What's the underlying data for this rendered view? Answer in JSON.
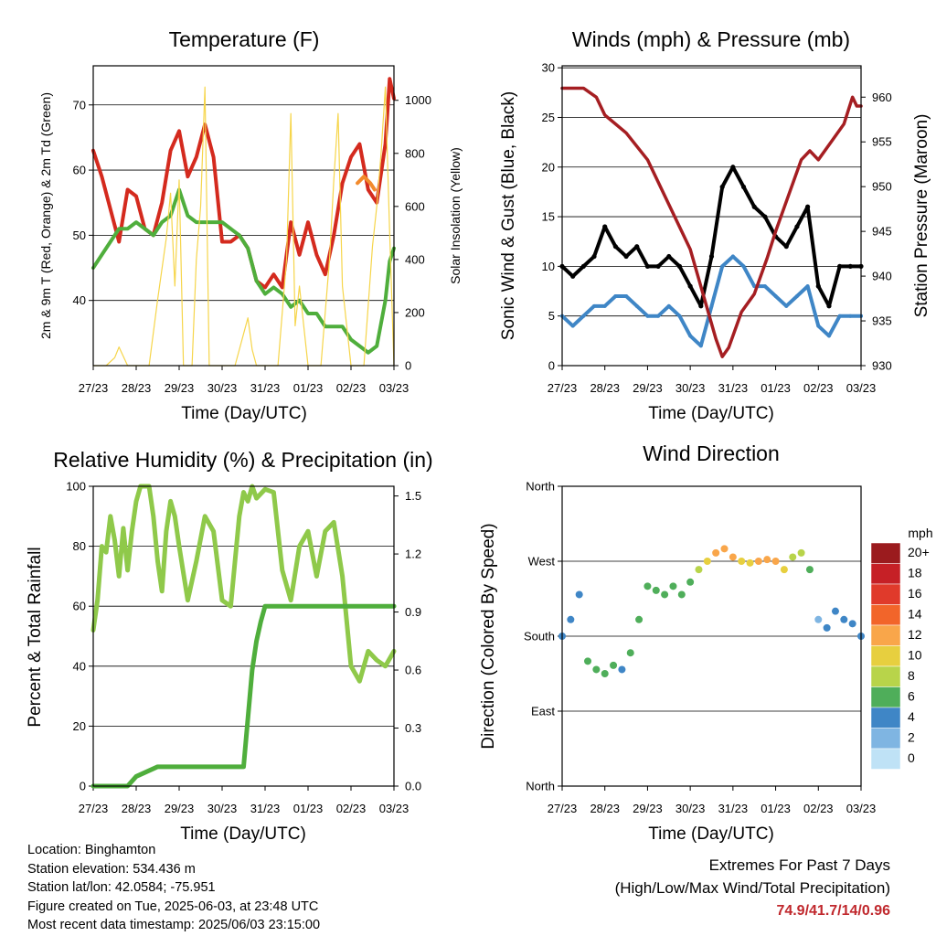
{
  "panels": {
    "temperature": {
      "title": "Temperature (F)",
      "xlabel": "Time (Day/UTC)",
      "ylabel_left": "2m & 9m T (Red, Orange) & 2m Td (Green)",
      "ylabel_right": "Solar Insolation (Yellow)"
    },
    "winds": {
      "title": "Winds (mph) & Pressure (mb)",
      "xlabel": "Time (Day/UTC)",
      "ylabel_left": "Sonic Wind & Gust (Blue, Black)",
      "ylabel_right": "Station Pressure (Maroon)"
    },
    "humidity": {
      "title": "Relative Humidity (%) & Precipitation (in)",
      "xlabel": "Time (Day/UTC)",
      "ylabel_left": "Percent & Total Rainfall"
    },
    "direction": {
      "title": "Wind Direction",
      "xlabel": "Time (Day/UTC)",
      "ylabel_left": "Direction (Colored By Speed)"
    }
  },
  "colorbar": {
    "title": "mph",
    "labels": [
      "20+",
      "18",
      "16",
      "14",
      "12",
      "10",
      "8",
      "6",
      "4",
      "2",
      "0"
    ],
    "colors": [
      "#9b1b1e",
      "#c62026",
      "#e03a2b",
      "#f2652a",
      "#f9a64a",
      "#e7cf3f",
      "#b8d44a",
      "#4fae5a",
      "#3f86c6",
      "#7fb5e2",
      "#bfe2f6"
    ]
  },
  "footer": {
    "location": "Location: Binghamton",
    "elevation": "Station elevation: 534.436 m",
    "latlon": "Station lat/lon: 42.0584; -75.951",
    "created": "Figure created on Tue, 2025-06-03, at 23:48 UTC",
    "recent": "Most recent data timestamp: 2025/06/03 23:15:00",
    "extremes_title": "Extremes For Past 7 Days",
    "extremes_sub": "(High/Low/Max Wind/Total Precipitation)",
    "extremes_values": "74.9/41.7/14/0.96"
  },
  "chart_data": [
    {
      "type": "line",
      "title": "Temperature (F)",
      "xlabel": "Time (Day/UTC)",
      "ylabel": "2m & 9m T (Red, Orange) & 2m Td (Green)",
      "ylabel_right": "Solar Insolation (Yellow)",
      "x_ticks": [
        "27/23",
        "28/23",
        "29/23",
        "30/23",
        "31/23",
        "01/23",
        "02/23",
        "03/23"
      ],
      "xlim": [
        0,
        7
      ],
      "ylim": [
        30,
        76
      ],
      "yticks": [
        40,
        50,
        60,
        70
      ],
      "ylim_right": [
        0,
        1130
      ],
      "yticks_right": [
        0,
        200,
        400,
        600,
        800,
        1000
      ],
      "grid": true,
      "series": [
        {
          "name": "2m T",
          "color": "#d42a1e",
          "axis": "left",
          "x": [
            0,
            0.2,
            0.4,
            0.6,
            0.8,
            1.0,
            1.2,
            1.4,
            1.6,
            1.8,
            2.0,
            2.2,
            2.4,
            2.6,
            2.8,
            3.0,
            3.2,
            3.4,
            3.6,
            3.8,
            4.0,
            4.2,
            4.4,
            4.6,
            4.8,
            5.0,
            5.2,
            5.4,
            5.6,
            5.8,
            6.0,
            6.2,
            6.4,
            6.6,
            6.8,
            6.9,
            7.0
          ],
          "y": [
            63,
            59,
            54,
            49,
            57,
            56,
            51,
            50,
            55,
            63,
            66,
            59,
            62,
            67,
            62,
            49,
            49,
            50,
            48,
            43,
            42,
            44,
            42,
            52,
            47,
            52,
            47,
            44,
            50,
            58,
            62,
            64,
            57,
            55,
            64,
            74,
            71
          ]
        },
        {
          "name": "9m T",
          "color": "#f28a2c",
          "axis": "left",
          "x": [
            6.15,
            6.3,
            6.45,
            6.55
          ],
          "y": [
            58,
            59,
            58,
            57
          ]
        },
        {
          "name": "2m Td",
          "color": "#4fae3c",
          "axis": "left",
          "x": [
            0,
            0.2,
            0.4,
            0.6,
            0.8,
            1.0,
            1.2,
            1.4,
            1.6,
            1.8,
            2.0,
            2.2,
            2.4,
            2.6,
            2.8,
            3.0,
            3.2,
            3.4,
            3.6,
            3.8,
            4.0,
            4.2,
            4.4,
            4.6,
            4.8,
            5.0,
            5.2,
            5.4,
            5.6,
            5.8,
            6.0,
            6.2,
            6.4,
            6.6,
            6.8,
            6.9,
            7.0
          ],
          "y": [
            45,
            47,
            49,
            51,
            51,
            52,
            51,
            50,
            52,
            53,
            57,
            53,
            52,
            52,
            52,
            52,
            51,
            50,
            48,
            43,
            41,
            42,
            41,
            39,
            40,
            38,
            38,
            36,
            36,
            36,
            34,
            33,
            32,
            33,
            40,
            46,
            48
          ]
        },
        {
          "name": "Solar",
          "color": "#f6d54a",
          "axis": "right",
          "x": [
            0,
            0.3,
            0.5,
            0.6,
            0.8,
            1.0,
            1.3,
            1.5,
            1.7,
            1.8,
            1.9,
            2.0,
            2.1,
            2.3,
            2.4,
            2.5,
            2.6,
            2.7,
            2.8,
            2.9,
            3.1,
            3.3,
            3.5,
            3.6,
            3.7,
            3.8,
            3.9,
            4.3,
            4.5,
            4.6,
            4.7,
            4.8,
            5.0,
            5.3,
            5.5,
            5.6,
            5.7,
            5.8,
            6.0,
            6.3,
            6.5,
            6.6,
            6.7,
            6.8,
            6.9,
            7.0
          ],
          "y": [
            0,
            0,
            30,
            70,
            0,
            0,
            0,
            250,
            480,
            650,
            300,
            700,
            0,
            0,
            400,
            600,
            1050,
            0,
            0,
            0,
            0,
            0,
            120,
            180,
            60,
            0,
            0,
            0,
            400,
            950,
            150,
            300,
            0,
            0,
            400,
            700,
            950,
            300,
            0,
            0,
            450,
            600,
            800,
            1050,
            500,
            0
          ]
        }
      ]
    },
    {
      "type": "scatter",
      "title": "Winds (mph) & Pressure (mb)",
      "xlabel": "Time (Day/UTC)",
      "ylabel": "Sonic Wind & Gust (Blue, Black)",
      "ylabel_right": "Station Pressure (Maroon)",
      "x_ticks": [
        "27/23",
        "28/23",
        "29/23",
        "30/23",
        "31/23",
        "01/23",
        "02/23",
        "03/23"
      ],
      "xlim": [
        0,
        7
      ],
      "ylim": [
        0,
        30.2
      ],
      "yticks": [
        0,
        5,
        10,
        15,
        20,
        25,
        30
      ],
      "ylim_right": [
        930,
        963.5
      ],
      "yticks_right": [
        930,
        935,
        940,
        945,
        950,
        955,
        960
      ],
      "grid": true,
      "series": [
        {
          "name": "Sonic Wind",
          "color": "#3f86c6",
          "axis": "left",
          "x": [
            0,
            0.25,
            0.5,
            0.75,
            1.0,
            1.25,
            1.5,
            1.75,
            2.0,
            2.25,
            2.5,
            2.75,
            3.0,
            3.25,
            3.5,
            3.75,
            4.0,
            4.25,
            4.5,
            4.75,
            5.0,
            5.25,
            5.5,
            5.75,
            6.0,
            6.25,
            6.5,
            6.75,
            7.0
          ],
          "y": [
            5,
            4,
            5,
            6,
            6,
            7,
            7,
            6,
            5,
            5,
            6,
            5,
            3,
            2,
            6,
            10,
            11,
            10,
            8,
            8,
            7,
            6,
            7,
            8,
            4,
            3,
            5,
            5,
            5
          ]
        },
        {
          "name": "Gust",
          "color": "#000000",
          "axis": "left",
          "x": [
            0,
            0.25,
            0.5,
            0.75,
            1.0,
            1.25,
            1.5,
            1.75,
            2.0,
            2.25,
            2.5,
            2.75,
            3.0,
            3.25,
            3.5,
            3.75,
            4.0,
            4.25,
            4.5,
            4.75,
            5.0,
            5.25,
            5.5,
            5.75,
            6.0,
            6.25,
            6.5,
            6.75,
            7.0
          ],
          "y": [
            10,
            9,
            10,
            11,
            14,
            12,
            11,
            12,
            10,
            10,
            11,
            10,
            8,
            6,
            11,
            18,
            20,
            18,
            16,
            15,
            13,
            12,
            14,
            16,
            8,
            6,
            10,
            10,
            10
          ]
        },
        {
          "name": "Pressure",
          "color": "#a51e22",
          "axis": "right",
          "x": [
            0,
            0.5,
            0.8,
            1.0,
            1.5,
            2.0,
            2.5,
            3.0,
            3.3,
            3.6,
            3.75,
            3.9,
            4.2,
            4.5,
            4.8,
            5.0,
            5.3,
            5.6,
            5.8,
            6.0,
            6.3,
            6.6,
            6.8,
            6.9,
            7.0
          ],
          "y": [
            961,
            961,
            960,
            958,
            956,
            953,
            948,
            943,
            938,
            933,
            931,
            932,
            936,
            938,
            942,
            945,
            949,
            953,
            954,
            953,
            955,
            957,
            960,
            959,
            959
          ]
        }
      ]
    },
    {
      "type": "line",
      "title": "Relative Humidity (%) & Precipitation (in)",
      "xlabel": "Time (Day/UTC)",
      "ylabel": "Percent & Total Rainfall",
      "x_ticks": [
        "27/23",
        "28/23",
        "29/23",
        "30/23",
        "31/23",
        "01/23",
        "02/23",
        "03/23"
      ],
      "xlim": [
        0,
        7
      ],
      "ylim": [
        0,
        100
      ],
      "yticks": [
        0,
        20,
        40,
        60,
        80,
        100
      ],
      "ylim_right": [
        0,
        1.55
      ],
      "yticks_right": [
        0,
        0.3,
        0.6,
        0.9,
        1.2,
        1.5
      ],
      "grid": true,
      "series": [
        {
          "name": "Relative Humidity",
          "color": "#8fc94a",
          "axis": "left",
          "x": [
            0,
            0.1,
            0.2,
            0.3,
            0.4,
            0.5,
            0.6,
            0.7,
            0.8,
            0.9,
            1.0,
            1.1,
            1.2,
            1.3,
            1.4,
            1.5,
            1.6,
            1.7,
            1.8,
            1.9,
            2.0,
            2.2,
            2.4,
            2.6,
            2.8,
            3.0,
            3.2,
            3.4,
            3.5,
            3.6,
            3.7,
            3.8,
            4.0,
            4.2,
            4.4,
            4.6,
            4.8,
            5.0,
            5.2,
            5.4,
            5.6,
            5.8,
            6.0,
            6.2,
            6.4,
            6.6,
            6.8,
            7.0
          ],
          "y": [
            52,
            62,
            80,
            78,
            90,
            82,
            70,
            86,
            72,
            85,
            95,
            100,
            100,
            100,
            90,
            75,
            65,
            85,
            95,
            90,
            80,
            62,
            75,
            90,
            85,
            62,
            60,
            90,
            98,
            95,
            100,
            96,
            99,
            98,
            72,
            62,
            80,
            85,
            70,
            85,
            88,
            70,
            40,
            35,
            45,
            42,
            40,
            45
          ]
        },
        {
          "name": "Total Rainfall",
          "color": "#4fae3c",
          "axis": "right",
          "x": [
            0,
            0.5,
            0.8,
            1.0,
            1.2,
            1.5,
            2.0,
            2.5,
            3.0,
            3.3,
            3.5,
            3.6,
            3.7,
            3.8,
            3.9,
            4.0,
            4.2,
            5.0,
            6.0,
            7.0
          ],
          "y": [
            0,
            0,
            0,
            0.05,
            0.07,
            0.1,
            0.1,
            0.1,
            0.1,
            0.1,
            0.1,
            0.35,
            0.6,
            0.75,
            0.85,
            0.93,
            0.93,
            0.93,
            0.93,
            0.93
          ]
        }
      ]
    },
    {
      "type": "scatter",
      "title": "Wind Direction",
      "xlabel": "Time (Day/UTC)",
      "ylabel": "Direction (Colored By Speed)",
      "x_ticks": [
        "27/23",
        "28/23",
        "29/23",
        "30/23",
        "31/23",
        "01/23",
        "02/23",
        "03/23"
      ],
      "xlim": [
        0,
        7
      ],
      "ylim": [
        0,
        360
      ],
      "ytick_labels": [
        "North",
        "East",
        "South",
        "West",
        "North"
      ],
      "yticks": [
        0,
        90,
        180,
        270,
        360
      ],
      "grid": true,
      "series": [
        {
          "name": "Direction",
          "color_by": "speed",
          "x": [
            0,
            0.2,
            0.4,
            0.6,
            0.8,
            1.0,
            1.2,
            1.4,
            1.6,
            1.8,
            2.0,
            2.2,
            2.4,
            2.6,
            2.8,
            3.0,
            3.2,
            3.4,
            3.6,
            3.8,
            4.0,
            4.2,
            4.4,
            4.6,
            4.8,
            5.0,
            5.2,
            5.4,
            5.6,
            5.8,
            6.0,
            6.2,
            6.4,
            6.6,
            6.8,
            7.0
          ],
          "y": [
            180,
            200,
            230,
            150,
            140,
            135,
            145,
            140,
            160,
            200,
            240,
            235,
            230,
            240,
            230,
            245,
            260,
            270,
            280,
            285,
            275,
            270,
            268,
            270,
            272,
            270,
            260,
            275,
            280,
            260,
            200,
            190,
            210,
            200,
            195,
            180
          ],
          "speed": [
            4,
            3,
            4,
            5,
            6,
            5,
            6,
            4,
            5,
            5,
            6,
            6,
            5,
            6,
            5,
            6,
            7,
            9,
            11,
            12,
            11,
            10,
            10,
            11,
            12,
            11,
            9,
            8,
            7,
            6,
            2,
            3,
            4,
            3,
            4,
            4
          ]
        }
      ]
    }
  ]
}
